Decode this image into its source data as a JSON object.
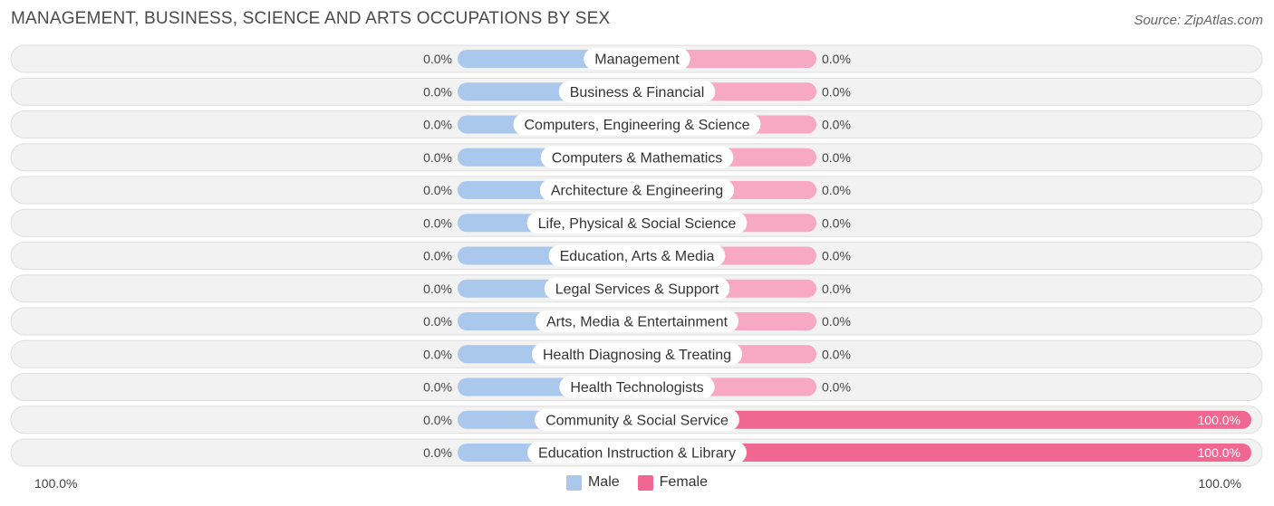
{
  "title": "MANAGEMENT, BUSINESS, SCIENCE AND ARTS OCCUPATIONS BY SEX",
  "source": "Source: ZipAtlas.com",
  "colors": {
    "male": "#aac8ec",
    "female_light": "#f7a8c2",
    "female_full": "#f06892"
  },
  "axis": {
    "left_label": "100.0%",
    "right_label": "100.0%"
  },
  "legend": {
    "male_label": "Male",
    "female_label": "Female"
  },
  "chart_data": {
    "type": "bar",
    "orientation": "diverging-horizontal",
    "categories": [
      "Management",
      "Business & Financial",
      "Computers, Engineering & Science",
      "Computers & Mathematics",
      "Architecture & Engineering",
      "Life, Physical & Social Science",
      "Education, Arts & Media",
      "Legal Services & Support",
      "Arts, Media & Entertainment",
      "Health Diagnosing & Treating",
      "Health Technologists",
      "Community & Social Service",
      "Education Instruction & Library"
    ],
    "series": [
      {
        "name": "Male",
        "values": [
          0,
          0,
          0,
          0,
          0,
          0,
          0,
          0,
          0,
          0,
          0,
          0,
          0
        ],
        "labels": [
          "0.0%",
          "0.0%",
          "0.0%",
          "0.0%",
          "0.0%",
          "0.0%",
          "0.0%",
          "0.0%",
          "0.0%",
          "0.0%",
          "0.0%",
          "0.0%",
          "0.0%"
        ]
      },
      {
        "name": "Female",
        "values": [
          0,
          0,
          0,
          0,
          0,
          0,
          0,
          0,
          0,
          0,
          0,
          100,
          100
        ],
        "labels": [
          "0.0%",
          "0.0%",
          "0.0%",
          "0.0%",
          "0.0%",
          "0.0%",
          "0.0%",
          "0.0%",
          "0.0%",
          "0.0%",
          "0.0%",
          "100.0%",
          "100.0%"
        ]
      }
    ],
    "xlim": [
      -100,
      100
    ],
    "legend_position": "bottom-center"
  }
}
